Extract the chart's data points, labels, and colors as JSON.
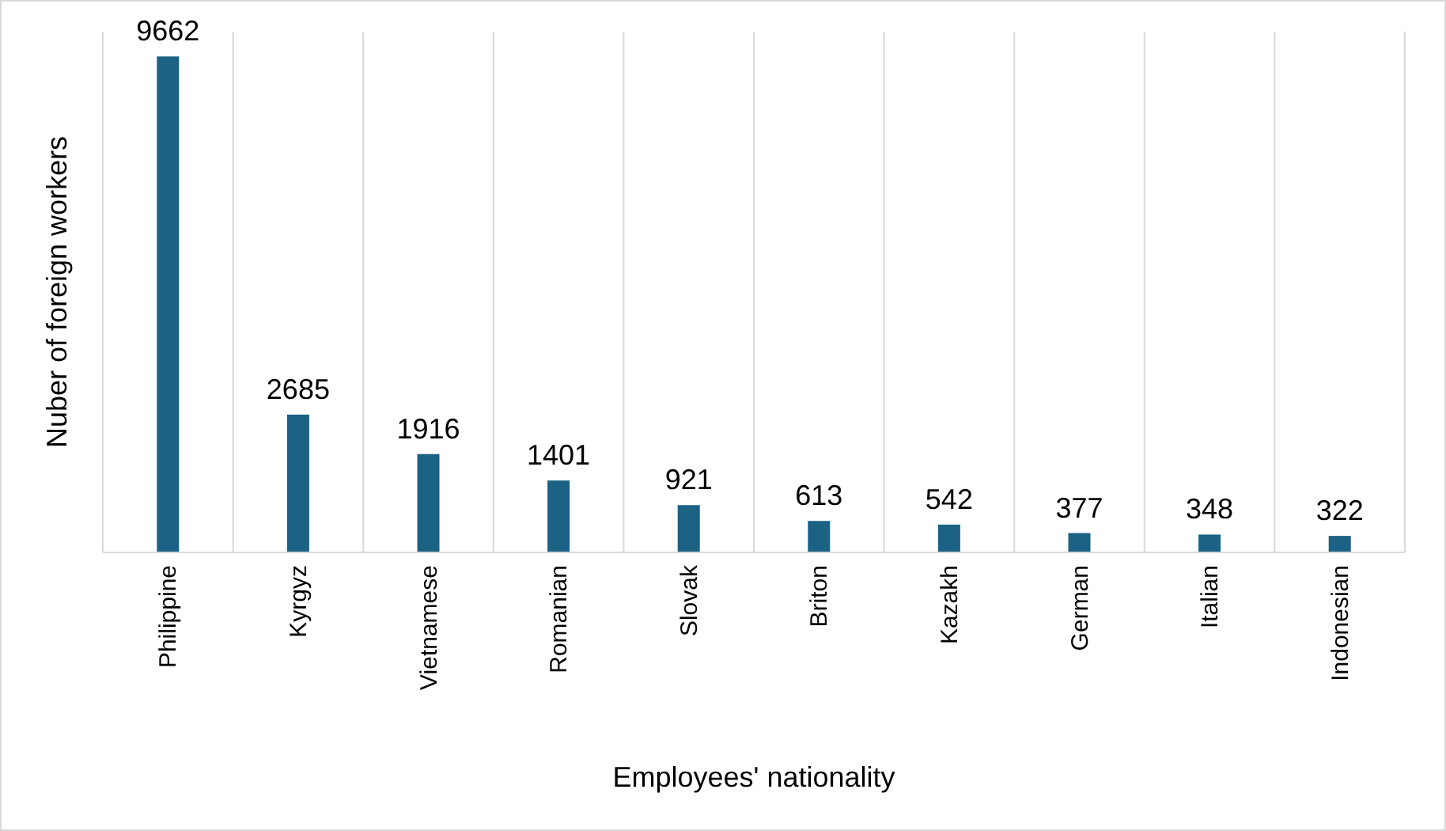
{
  "chart_data": {
    "type": "bar",
    "xlabel": "Employees' nationality",
    "ylabel": "Nuber of foreign workers",
    "categories": [
      "Philippine",
      "Kyrgyz",
      "Vietnamese",
      "Romanian",
      "Slovak",
      "Briton",
      "Kazakh",
      "German",
      "Italian",
      "Indonesian"
    ],
    "values": [
      9662,
      2685,
      1916,
      1401,
      921,
      613,
      542,
      377,
      348,
      322
    ],
    "color": "#1b6284",
    "data_labels": true,
    "grid": "x"
  }
}
